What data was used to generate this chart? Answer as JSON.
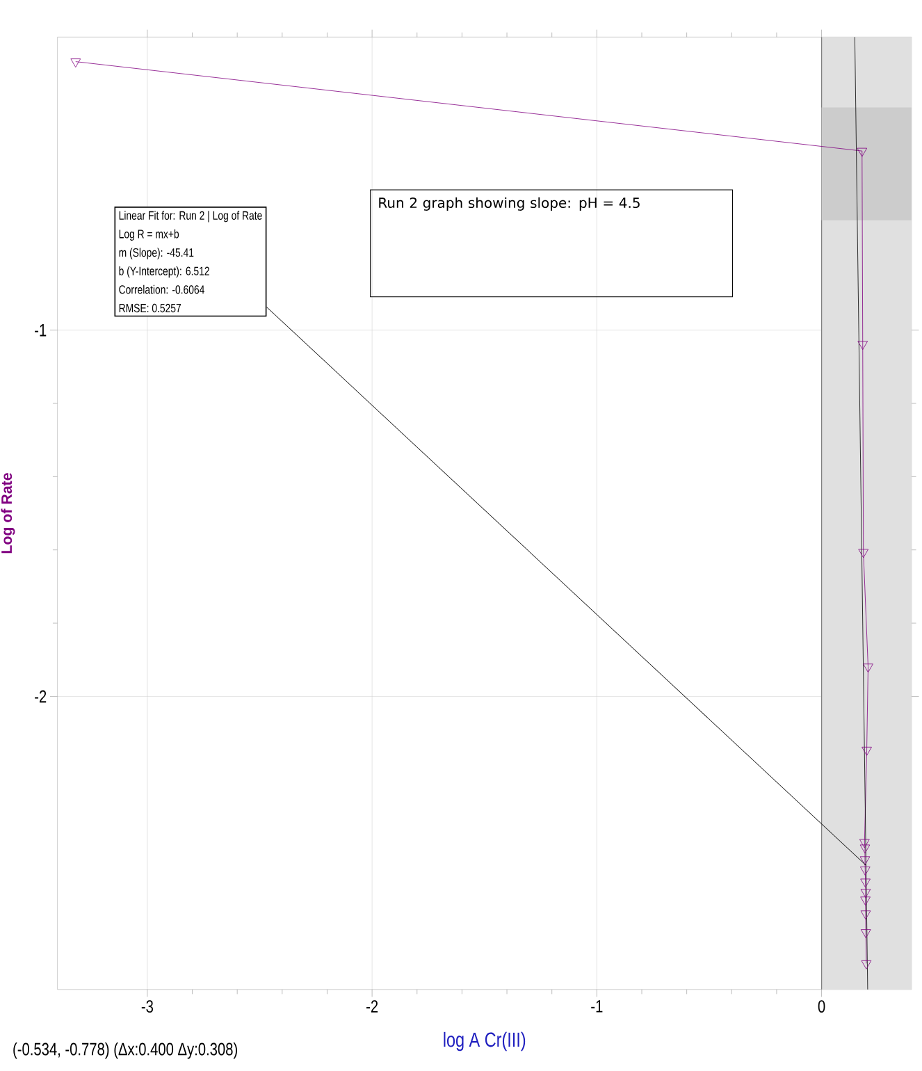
{
  "chart_data": {
    "type": "line",
    "xlabel": "log A Cr(III)",
    "ylabel": "Log of Rate",
    "xlim": [
      -3.4,
      0.4
    ],
    "ylim": [
      -2.8,
      -0.2
    ],
    "xticks": [
      -3,
      -2,
      -1,
      0
    ],
    "yticks": [
      -1,
      -2
    ],
    "grid": true,
    "series": [
      {
        "type": "line",
        "color": "#800080",
        "marker": "triangle",
        "x": [
          -3.319,
          0.18,
          0.183,
          0.186,
          0.207,
          0.201,
          0.191,
          0.193,
          0.193,
          0.194,
          0.195,
          0.196,
          0.195,
          0.196,
          0.197,
          0.199
        ],
        "values": [
          -0.267,
          -0.511,
          -1.038,
          -1.606,
          -1.919,
          -2.146,
          -2.398,
          -2.413,
          -2.445,
          -2.473,
          -2.506,
          -2.534,
          -2.555,
          -2.593,
          -2.644,
          -2.729
        ]
      },
      {
        "type": "line",
        "color": "#000000",
        "marker": "none",
        "x": [
          0.1478,
          0.2051
        ],
        "values": [
          -0.2,
          -2.8
        ]
      }
    ],
    "bands": [
      {
        "axis": "x",
        "from": 0,
        "to": 0.4,
        "color": "#e0e0e0"
      },
      {
        "axis": "y",
        "from": -0.7,
        "to": -0.392,
        "color": "#cccccc"
      }
    ],
    "annotations": [
      "Run 2 graph showing slope: pH = 4.5",
      "Linear Fit for: Run 2 | Log of Rate",
      "Log R = mx+b",
      "m (Slope): -45.41",
      "b (Y-Intercept): 6.512",
      "Correlation: -0.6064",
      "RMSE: 0.5257",
      "(-0.534, -0.778) (Δx:0.400 Δy:0.308)"
    ]
  }
}
